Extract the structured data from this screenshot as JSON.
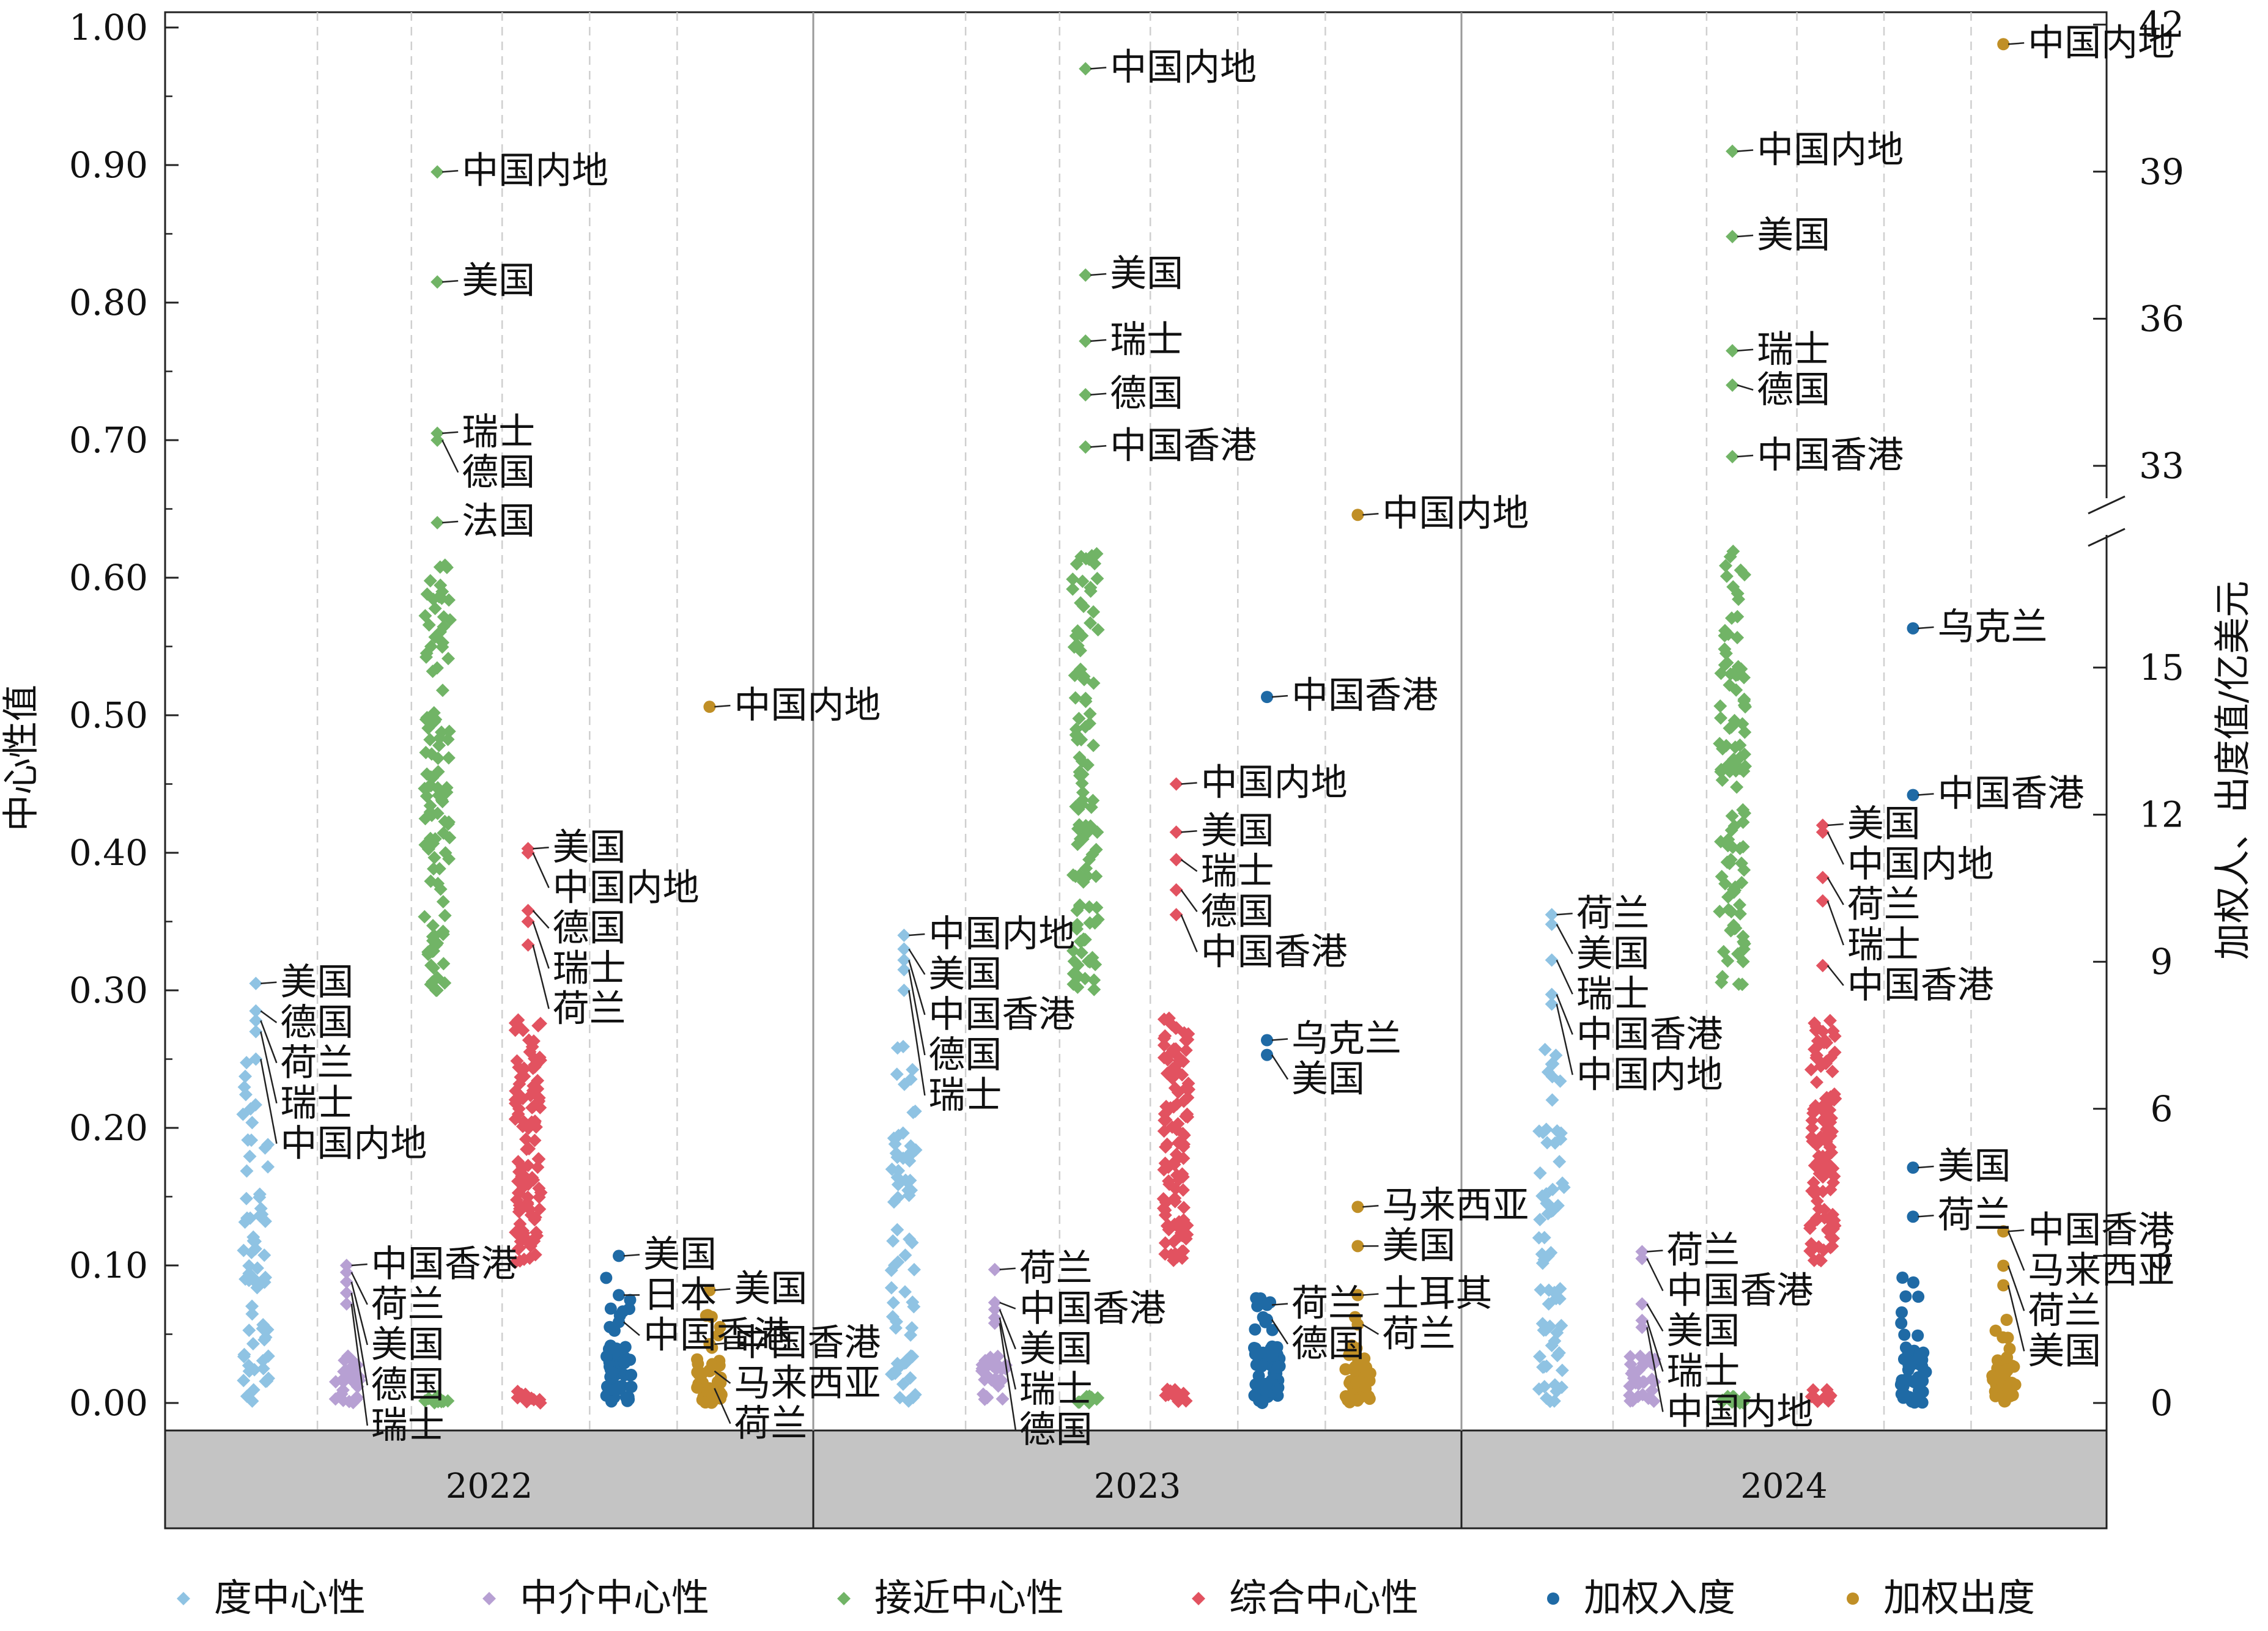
{
  "chart_data": {
    "type": "scatter",
    "title": "",
    "ylabel_left": "中心性值",
    "ylabel_right": "加权人、出度值/亿美元",
    "ylim_left": [
      0,
      1.0
    ],
    "left_ticks": [
      "0.00",
      "0.10",
      "0.20",
      "0.30",
      "0.40",
      "0.50",
      "0.60",
      "0.70",
      "0.80",
      "0.90",
      "1.00"
    ],
    "right_ticks_lower": [
      "0",
      "3",
      "6",
      "9",
      "12",
      "15"
    ],
    "right_ticks_upper": [
      "33",
      "36",
      "39",
      "42"
    ],
    "right_axis_break": true,
    "years": [
      "2022",
      "2023",
      "2024"
    ],
    "grid": "dashed vertical separators",
    "legend_position": "bottom",
    "series": [
      {
        "key": "degree",
        "name": "度中心性",
        "color": "#8fc3e3",
        "marker": "diamond"
      },
      {
        "key": "betweenness",
        "name": "中介中心性",
        "color": "#b7a0d3",
        "marker": "diamond"
      },
      {
        "key": "closeness",
        "name": "接近中心性",
        "color": "#71b466",
        "marker": "diamond"
      },
      {
        "key": "composite",
        "name": "综合中心性",
        "color": "#e25260",
        "marker": "diamond"
      },
      {
        "key": "in",
        "name": "加权入度",
        "color": "#1f6aa5",
        "marker": "circle"
      },
      {
        "key": "out",
        "name": "加权出度",
        "color": "#c08f26",
        "marker": "circle"
      }
    ],
    "annotated_points": [
      {
        "year": "2022",
        "series": "degree",
        "label": "美国",
        "y": 0.305
      },
      {
        "year": "2022",
        "series": "degree",
        "label": "德国",
        "y": 0.285
      },
      {
        "year": "2022",
        "series": "degree",
        "label": "荷兰",
        "y": 0.278
      },
      {
        "year": "2022",
        "series": "degree",
        "label": "瑞士",
        "y": 0.27
      },
      {
        "year": "2022",
        "series": "degree",
        "label": "中国内地",
        "y": 0.25
      },
      {
        "year": "2022",
        "series": "betweenness",
        "label": "中国香港",
        "y": 0.1
      },
      {
        "year": "2022",
        "series": "betweenness",
        "label": "荷兰",
        "y": 0.095
      },
      {
        "year": "2022",
        "series": "betweenness",
        "label": "美国",
        "y": 0.088
      },
      {
        "year": "2022",
        "series": "betweenness",
        "label": "德国",
        "y": 0.08
      },
      {
        "year": "2022",
        "series": "betweenness",
        "label": "瑞士",
        "y": 0.072
      },
      {
        "year": "2022",
        "series": "closeness",
        "label": "中国内地",
        "y": 0.895
      },
      {
        "year": "2022",
        "series": "closeness",
        "label": "美国",
        "y": 0.815
      },
      {
        "year": "2022",
        "series": "closeness",
        "label": "瑞士",
        "y": 0.705
      },
      {
        "year": "2022",
        "series": "closeness",
        "label": "德国",
        "y": 0.7
      },
      {
        "year": "2022",
        "series": "closeness",
        "label": "法国",
        "y": 0.64
      },
      {
        "year": "2022",
        "series": "composite",
        "label": "美国",
        "y": 0.403
      },
      {
        "year": "2022",
        "series": "composite",
        "label": "中国内地",
        "y": 0.4
      },
      {
        "year": "2022",
        "series": "composite",
        "label": "德国",
        "y": 0.358
      },
      {
        "year": "2022",
        "series": "composite",
        "label": "瑞士",
        "y": 0.35
      },
      {
        "year": "2022",
        "series": "composite",
        "label": "荷兰",
        "y": 0.333
      },
      {
        "year": "2022",
        "series": "in",
        "label": "美国",
        "y": 3.0
      },
      {
        "year": "2022",
        "series": "in",
        "label": "日本",
        "y": 2.2
      },
      {
        "year": "2022",
        "series": "in",
        "label": "中国香港",
        "y": 1.65
      },
      {
        "year": "2022",
        "series": "out",
        "label": "中国内地",
        "y": 14.2
      },
      {
        "year": "2022",
        "series": "out",
        "label": "美国",
        "y": 2.3
      },
      {
        "year": "2022",
        "series": "out",
        "label": "中国香港",
        "y": 1.2
      },
      {
        "year": "2022",
        "series": "out",
        "label": "马来西亚",
        "y": 0.65
      },
      {
        "year": "2022",
        "series": "out",
        "label": "荷兰",
        "y": 0.3
      },
      {
        "year": "2023",
        "series": "degree",
        "label": "中国内地",
        "y": 0.34
      },
      {
        "year": "2023",
        "series": "degree",
        "label": "美国",
        "y": 0.33
      },
      {
        "year": "2023",
        "series": "degree",
        "label": "中国香港",
        "y": 0.322
      },
      {
        "year": "2023",
        "series": "degree",
        "label": "德国",
        "y": 0.315
      },
      {
        "year": "2023",
        "series": "degree",
        "label": "瑞士",
        "y": 0.3
      },
      {
        "year": "2023",
        "series": "betweenness",
        "label": "荷兰",
        "y": 0.097
      },
      {
        "year": "2023",
        "series": "betweenness",
        "label": "中国香港",
        "y": 0.073
      },
      {
        "year": "2023",
        "series": "betweenness",
        "label": "美国",
        "y": 0.068
      },
      {
        "year": "2023",
        "series": "betweenness",
        "label": "瑞士",
        "y": 0.062
      },
      {
        "year": "2023",
        "series": "betweenness",
        "label": "德国",
        "y": 0.058
      },
      {
        "year": "2023",
        "series": "closeness",
        "label": "中国内地",
        "y": 0.97
      },
      {
        "year": "2023",
        "series": "closeness",
        "label": "美国",
        "y": 0.82
      },
      {
        "year": "2023",
        "series": "closeness",
        "label": "瑞士",
        "y": 0.772
      },
      {
        "year": "2023",
        "series": "closeness",
        "label": "德国",
        "y": 0.733
      },
      {
        "year": "2023",
        "series": "closeness",
        "label": "中国香港",
        "y": 0.695
      },
      {
        "year": "2023",
        "series": "composite",
        "label": "中国内地",
        "y": 0.45
      },
      {
        "year": "2023",
        "series": "composite",
        "label": "美国",
        "y": 0.415
      },
      {
        "year": "2023",
        "series": "composite",
        "label": "瑞士",
        "y": 0.395
      },
      {
        "year": "2023",
        "series": "composite",
        "label": "德国",
        "y": 0.373
      },
      {
        "year": "2023",
        "series": "composite",
        "label": "中国香港",
        "y": 0.355
      },
      {
        "year": "2023",
        "series": "in",
        "label": "中国香港",
        "y": 14.4
      },
      {
        "year": "2023",
        "series": "in",
        "label": "乌克兰",
        "y": 7.4
      },
      {
        "year": "2023",
        "series": "in",
        "label": "美国",
        "y": 7.1
      },
      {
        "year": "2023",
        "series": "in",
        "label": "荷兰",
        "y": 2.0
      },
      {
        "year": "2023",
        "series": "in",
        "label": "德国",
        "y": 1.7
      },
      {
        "year": "2023",
        "series": "out",
        "label": "中国内地",
        "y": 32.0
      },
      {
        "year": "2023",
        "series": "out",
        "label": "马来西亚",
        "y": 4.0
      },
      {
        "year": "2023",
        "series": "out",
        "label": "美国",
        "y": 3.2
      },
      {
        "year": "2023",
        "series": "out",
        "label": "土耳其",
        "y": 2.2
      },
      {
        "year": "2023",
        "series": "out",
        "label": "荷兰",
        "y": 1.6
      },
      {
        "year": "2024",
        "series": "degree",
        "label": "荷兰",
        "y": 0.355
      },
      {
        "year": "2024",
        "series": "degree",
        "label": "美国",
        "y": 0.348
      },
      {
        "year": "2024",
        "series": "degree",
        "label": "瑞士",
        "y": 0.322
      },
      {
        "year": "2024",
        "series": "degree",
        "label": "中国香港",
        "y": 0.297
      },
      {
        "year": "2024",
        "series": "degree",
        "label": "中国内地",
        "y": 0.29
      },
      {
        "year": "2024",
        "series": "betweenness",
        "label": "荷兰",
        "y": 0.11
      },
      {
        "year": "2024",
        "series": "betweenness",
        "label": "中国香港",
        "y": 0.105
      },
      {
        "year": "2024",
        "series": "betweenness",
        "label": "美国",
        "y": 0.072
      },
      {
        "year": "2024",
        "series": "betweenness",
        "label": "瑞士",
        "y": 0.06
      },
      {
        "year": "2024",
        "series": "betweenness",
        "label": "中国内地",
        "y": 0.055
      },
      {
        "year": "2024",
        "series": "closeness",
        "label": "中国内地",
        "y": 0.91
      },
      {
        "year": "2024",
        "series": "closeness",
        "label": "美国",
        "y": 0.848
      },
      {
        "year": "2024",
        "series": "closeness",
        "label": "瑞士",
        "y": 0.765
      },
      {
        "year": "2024",
        "series": "closeness",
        "label": "德国",
        "y": 0.74
      },
      {
        "year": "2024",
        "series": "closeness",
        "label": "中国香港",
        "y": 0.688
      },
      {
        "year": "2024",
        "series": "composite",
        "label": "美国",
        "y": 0.42
      },
      {
        "year": "2024",
        "series": "composite",
        "label": "中国内地",
        "y": 0.415
      },
      {
        "year": "2024",
        "series": "composite",
        "label": "荷兰",
        "y": 0.382
      },
      {
        "year": "2024",
        "series": "composite",
        "label": "瑞士",
        "y": 0.365
      },
      {
        "year": "2024",
        "series": "composite",
        "label": "中国香港",
        "y": 0.318
      },
      {
        "year": "2024",
        "series": "in",
        "label": "乌克兰",
        "y": 15.8
      },
      {
        "year": "2024",
        "series": "in",
        "label": "中国香港",
        "y": 12.4
      },
      {
        "year": "2024",
        "series": "in",
        "label": "美国",
        "y": 4.8
      },
      {
        "year": "2024",
        "series": "in",
        "label": "荷兰",
        "y": 3.8
      },
      {
        "year": "2024",
        "series": "out",
        "label": "中国内地",
        "y": 41.6
      },
      {
        "year": "2024",
        "series": "out",
        "label": "中国香港",
        "y": 3.5
      },
      {
        "year": "2024",
        "series": "out",
        "label": "马来西亚",
        "y": 3.5
      },
      {
        "year": "2024",
        "series": "out",
        "label": "荷兰",
        "y": 2.8
      },
      {
        "year": "2024",
        "series": "out",
        "label": "美国",
        "y": 2.4
      }
    ]
  }
}
